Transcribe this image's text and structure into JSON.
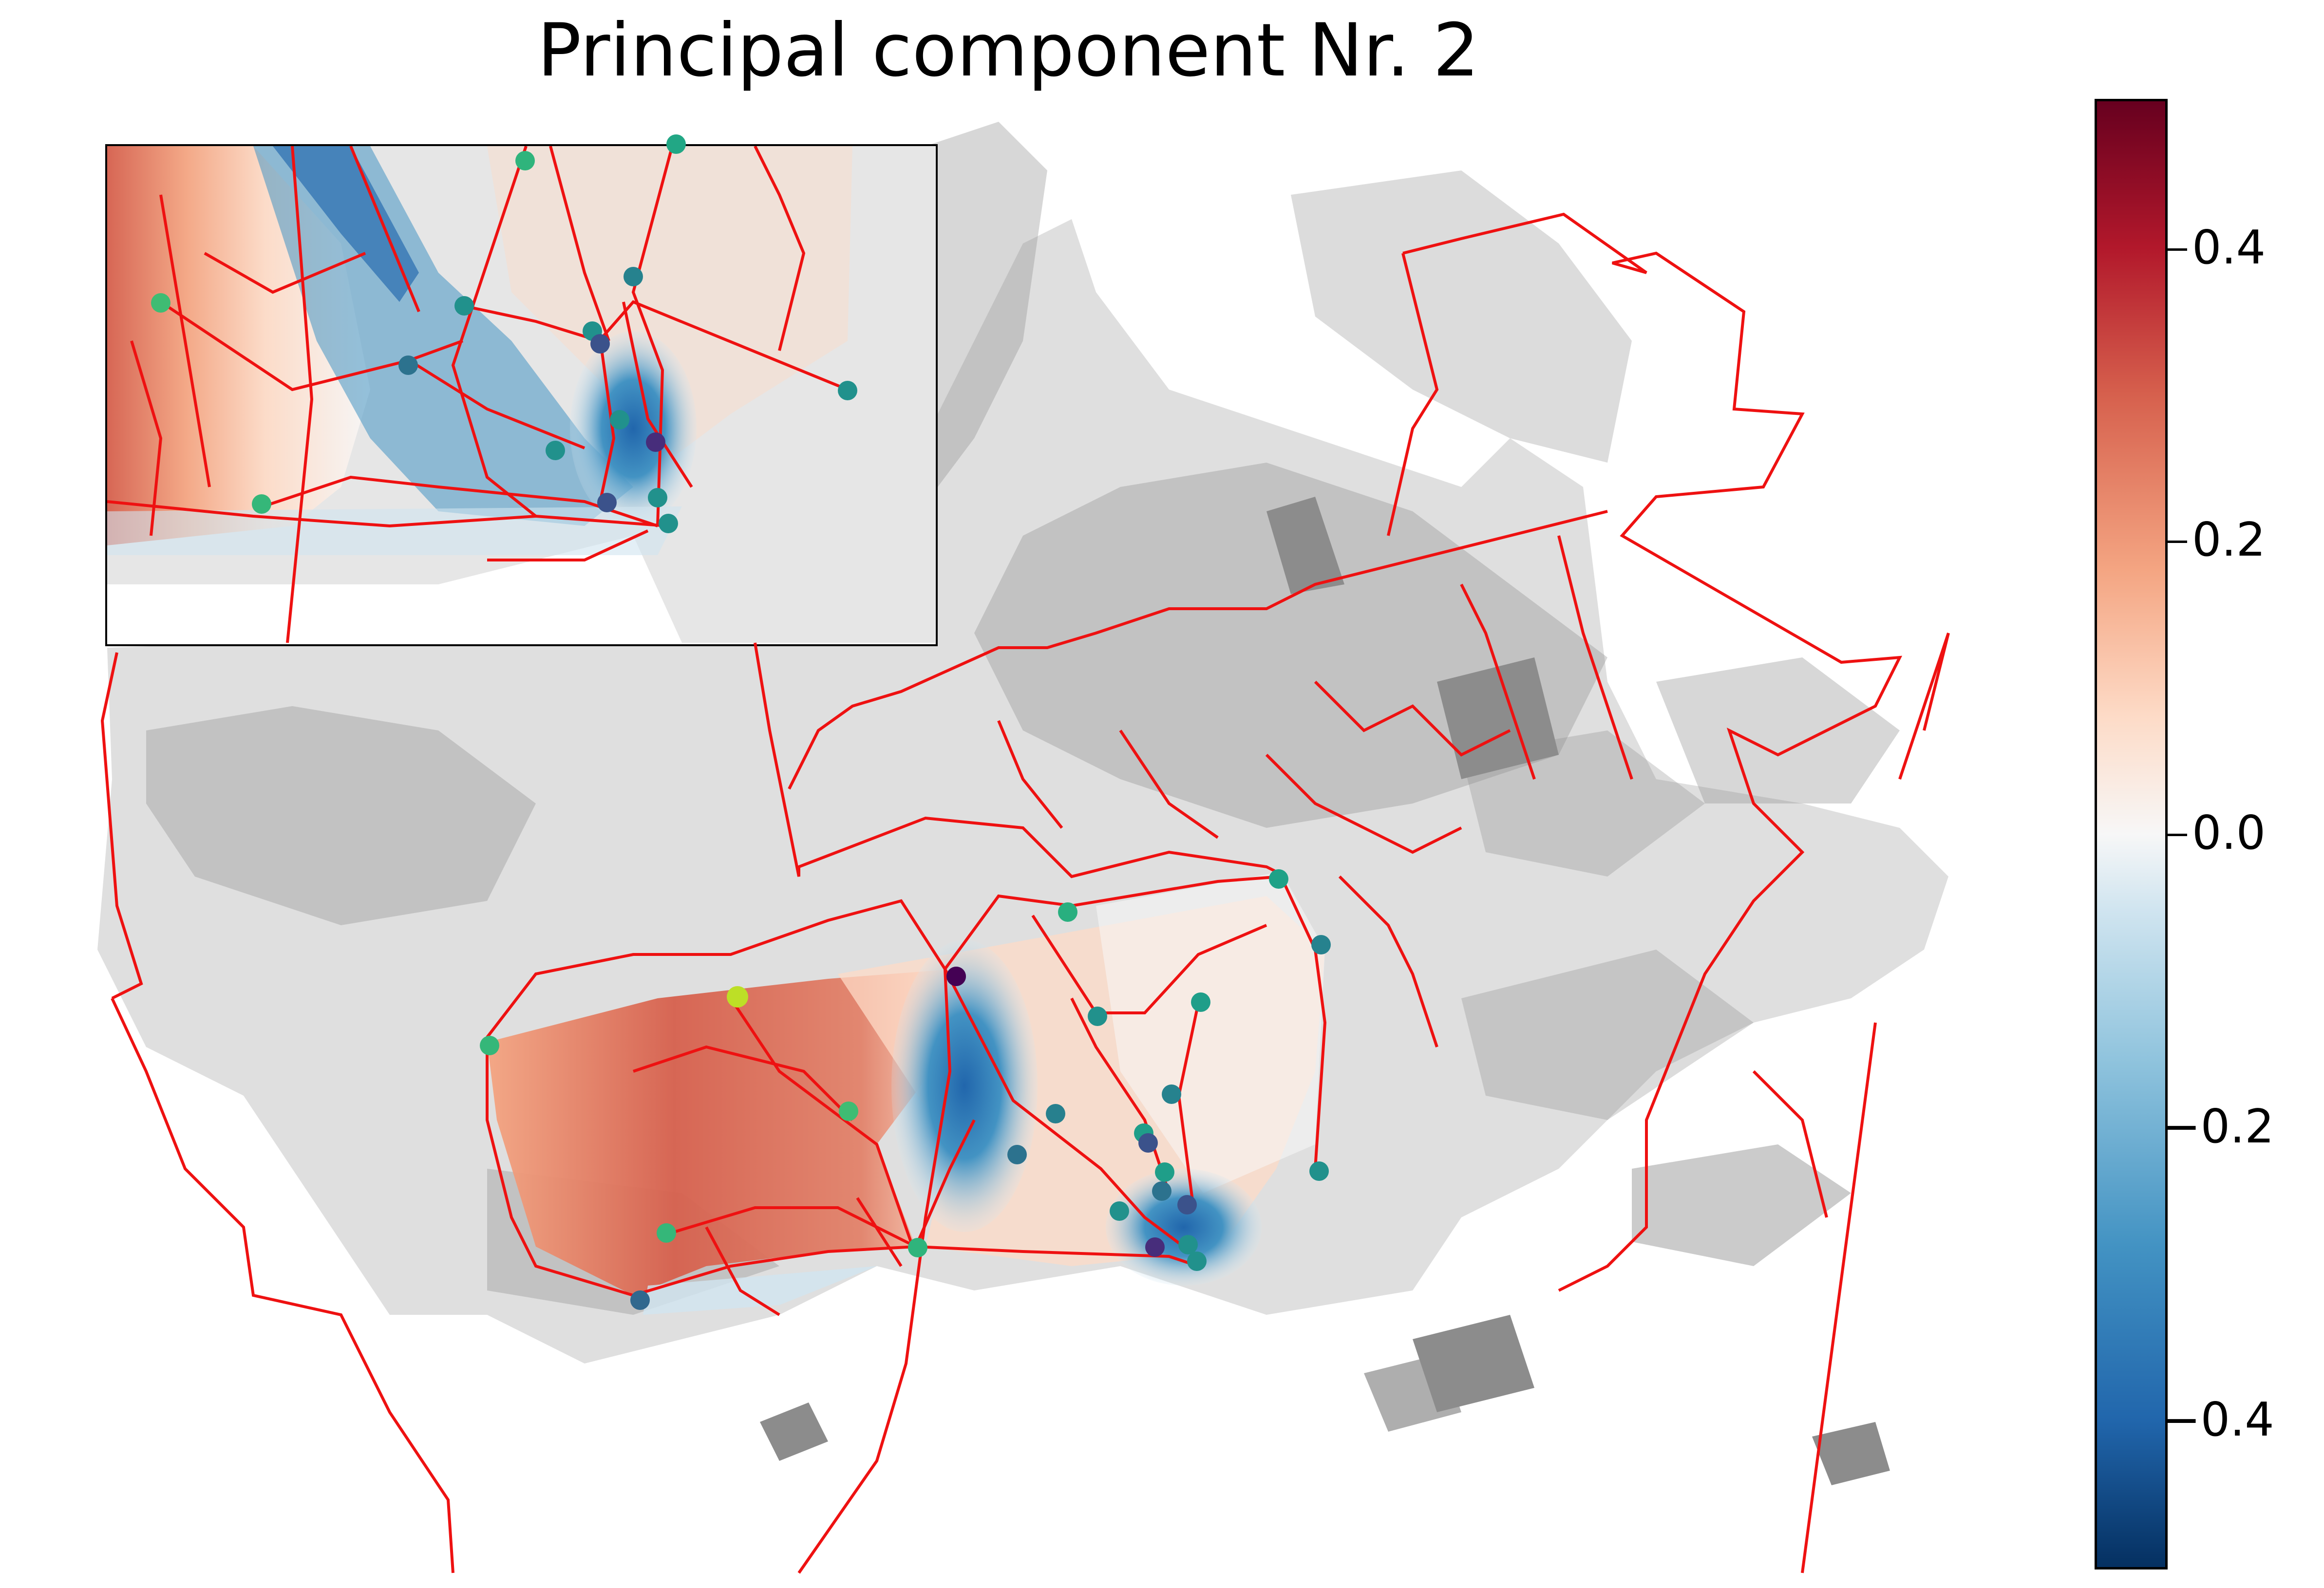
{
  "title": "Principal component Nr.  2",
  "colorbar": {
    "min": -0.5,
    "max": 0.5,
    "colormap": "RdBu_r",
    "ticks": [
      {
        "value": 0.4,
        "label": "0.4"
      },
      {
        "value": 0.2,
        "label": "0.2"
      },
      {
        "value": 0.0,
        "label": "0.0"
      },
      {
        "value": -0.2,
        "label": "−0.2"
      },
      {
        "value": -0.4,
        "label": "−0.4"
      }
    ]
  },
  "colors": {
    "boundary": "#ee1111",
    "built_area": "#8c8c8c",
    "positive": "#d6604d",
    "negative": "#2166ac"
  },
  "stations": {
    "main_map": [
      -0.05,
      -0.45,
      0.1,
      0.15,
      0.05,
      0.0,
      -0.05,
      -0.05,
      0.15,
      0.08,
      -0.1,
      0.0,
      -0.1,
      -0.2,
      -0.35,
      -0.3,
      -0.05,
      -0.4,
      -0.35,
      -0.3,
      -0.05,
      0.1,
      -0.1,
      -0.25
    ],
    "inset": [
      0.05,
      0.0,
      -0.1,
      0.1,
      -0.1,
      -0.1,
      -0.2,
      -0.35,
      -0.05,
      -0.3,
      -0.05,
      -0.1,
      -0.4,
      -0.1,
      -0.05,
      0.1
    ]
  }
}
